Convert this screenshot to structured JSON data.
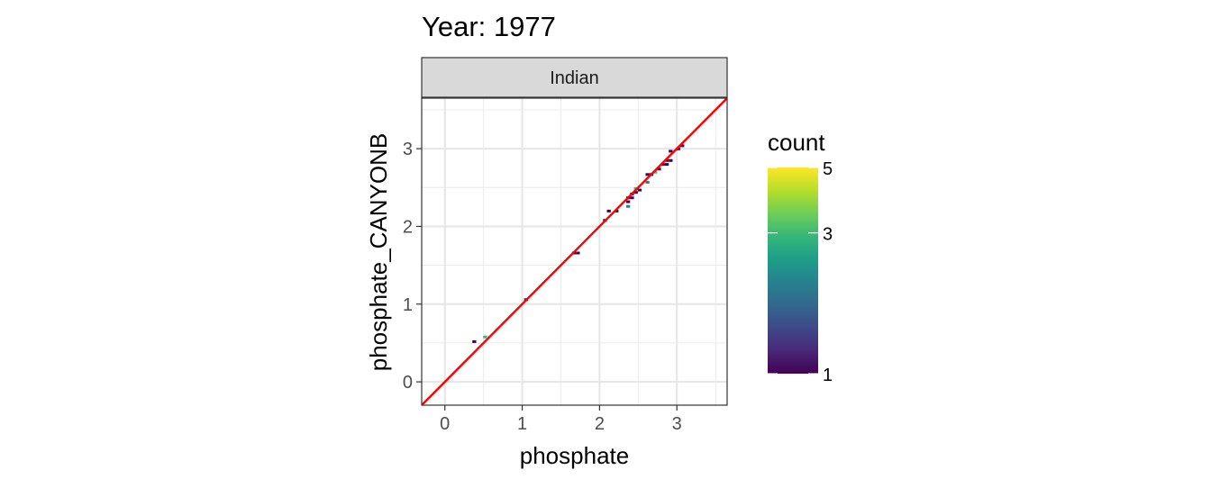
{
  "chart_data": {
    "type": "heatmap",
    "title": "Year: 1977",
    "facet": "Indian",
    "xlabel": "phosphate",
    "ylabel": "phosphate_CANYONB",
    "xlim": [
      -0.3,
      3.65
    ],
    "ylim": [
      -0.3,
      3.65
    ],
    "x_ticks": [
      0,
      1,
      2,
      3
    ],
    "y_ticks": [
      0,
      1,
      2,
      3
    ],
    "x_tick_labels": [
      "0",
      "1",
      "2",
      "3"
    ],
    "y_tick_labels": [
      "0",
      "1",
      "2",
      "3"
    ],
    "grid": true,
    "reference_line": {
      "slope": 1,
      "intercept": 0,
      "color": "#ff0000"
    },
    "legend": {
      "title": "count",
      "scale": "log",
      "min": 1,
      "max": 5,
      "ticks": [
        1,
        3,
        5
      ],
      "tick_labels": [
        "1",
        "3",
        "5"
      ],
      "position": "right",
      "palette": [
        "#440154",
        "#482878",
        "#3e4989",
        "#31688e",
        "#26828e",
        "#1f9e89",
        "#35b779",
        "#6ece58",
        "#b5de2b",
        "#fde725"
      ]
    },
    "bin_width": 0.05,
    "cells": [
      {
        "x": 0.38,
        "y": 0.51,
        "count": 1
      },
      {
        "x": 0.52,
        "y": 0.57,
        "count": 3
      },
      {
        "x": 1.05,
        "y": 1.05,
        "count": 1
      },
      {
        "x": 1.67,
        "y": 1.65,
        "count": 1
      },
      {
        "x": 1.72,
        "y": 1.65,
        "count": 1
      },
      {
        "x": 2.07,
        "y": 2.07,
        "count": 1
      },
      {
        "x": 2.12,
        "y": 2.19,
        "count": 1
      },
      {
        "x": 2.22,
        "y": 2.19,
        "count": 1
      },
      {
        "x": 2.37,
        "y": 2.25,
        "count": 2
      },
      {
        "x": 2.37,
        "y": 2.31,
        "count": 1
      },
      {
        "x": 2.37,
        "y": 2.36,
        "count": 1
      },
      {
        "x": 2.42,
        "y": 2.36,
        "count": 1
      },
      {
        "x": 2.42,
        "y": 2.41,
        "count": 1
      },
      {
        "x": 2.47,
        "y": 2.43,
        "count": 1
      },
      {
        "x": 2.47,
        "y": 2.48,
        "count": 3
      },
      {
        "x": 2.52,
        "y": 2.46,
        "count": 1
      },
      {
        "x": 2.62,
        "y": 2.56,
        "count": 2
      },
      {
        "x": 2.62,
        "y": 2.66,
        "count": 1
      },
      {
        "x": 2.67,
        "y": 2.66,
        "count": 1
      },
      {
        "x": 2.72,
        "y": 2.69,
        "count": 3
      },
      {
        "x": 2.77,
        "y": 2.73,
        "count": 1
      },
      {
        "x": 2.82,
        "y": 2.79,
        "count": 1
      },
      {
        "x": 2.87,
        "y": 2.84,
        "count": 1
      },
      {
        "x": 2.87,
        "y": 2.79,
        "count": 1
      },
      {
        "x": 2.92,
        "y": 2.84,
        "count": 1
      },
      {
        "x": 2.92,
        "y": 2.96,
        "count": 1
      },
      {
        "x": 3.02,
        "y": 2.99,
        "count": 1
      },
      {
        "x": 3.07,
        "y": 3.03,
        "count": 1
      }
    ]
  }
}
